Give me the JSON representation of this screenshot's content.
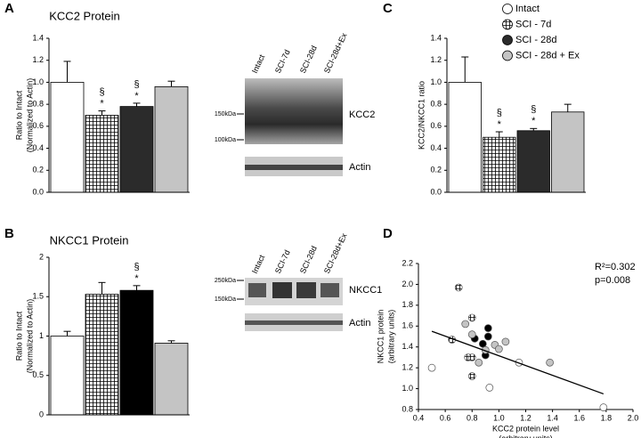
{
  "panel_labels": [
    "A",
    "B",
    "C",
    "D"
  ],
  "chart_data": [
    {
      "type": "bar",
      "title": "KCC2 Protein",
      "y_label": [
        "Ratio to Intact",
        "(Normalized to Actin)"
      ],
      "categories": [
        null,
        null,
        null,
        null
      ],
      "values": [
        1.0,
        0.7,
        0.78,
        0.96
      ],
      "errors": [
        0.19,
        0.04,
        0.03,
        0.05
      ],
      "fills": [
        "#ffffff",
        "hatch",
        "#2b2b2b",
        "#c4c4c4"
      ],
      "annotations": [
        {
          "index": 1,
          "lines": [
            "§",
            "*"
          ]
        },
        {
          "index": 2,
          "lines": [
            "§",
            "*"
          ]
        }
      ],
      "ylim": [
        0,
        1.4
      ],
      "yticks": [
        {
          "value": 0,
          "label": "0.0"
        },
        0.2,
        0.4,
        0.6,
        0.8,
        {
          "value": 1,
          "label": "1.0"
        },
        1.2,
        1.4
      ]
    },
    {
      "type": "bar",
      "title": "NKCC1 Protein",
      "y_label": [
        "Ratio to Intact",
        "(Normalized to Actin)"
      ],
      "categories": [
        null,
        null,
        null,
        null
      ],
      "values": [
        1.0,
        1.53,
        1.58,
        0.91
      ],
      "errors": [
        0.06,
        0.15,
        0.06,
        0.03
      ],
      "fills": [
        "#ffffff",
        "hatch",
        "#000000",
        "#c4c4c4"
      ],
      "annotations": [
        {
          "index": 2,
          "lines": [
            "§",
            "*"
          ]
        }
      ],
      "ylim": [
        0,
        2
      ],
      "yticks": [
        0,
        0.5,
        1,
        1.5,
        2
      ]
    },
    {
      "type": "bar",
      "y_label": [
        "KCC2/NKCC1 ratio"
      ],
      "categories": [
        "Intact",
        "SCI - 7d",
        "SCI - 28d",
        "SCI - 28d + Ex"
      ],
      "legend": true,
      "values": [
        1.0,
        0.5,
        0.56,
        0.73
      ],
      "errors": [
        0.23,
        0.05,
        0.02,
        0.07
      ],
      "fills": [
        "#ffffff",
        "hatch",
        "#2b2b2b",
        "#c4c4c4"
      ],
      "annotations": [
        {
          "index": 1,
          "lines": [
            "§",
            "*"
          ]
        },
        {
          "index": 2,
          "lines": [
            "§",
            "*"
          ]
        }
      ],
      "ylim": [
        0,
        1.4
      ],
      "yticks": [
        {
          "value": 0,
          "label": "0.0"
        },
        0.2,
        0.4,
        0.6,
        0.8,
        {
          "value": 1,
          "label": "1.0"
        },
        1.2,
        1.4
      ]
    },
    {
      "type": "scatter",
      "x_label": [
        "KCC2 protein level",
        "(arbitrary units)"
      ],
      "y_label": [
        "NKCC1 protein",
        "(arbitrary units)"
      ],
      "annotations": [
        "R²=0.302",
        "p=0.008"
      ],
      "series": [
        {
          "color": "#ffffff",
          "x": [
            0.5,
            0.93,
            1.15,
            1.78
          ],
          "y": [
            1.2,
            1.01,
            1.25,
            0.82
          ]
        },
        {
          "color": "hatch",
          "x": [
            0.7,
            0.65,
            0.8,
            0.77,
            0.8,
            0.8
          ],
          "y": [
            1.97,
            1.47,
            1.68,
            1.3,
            1.3,
            1.12
          ]
        },
        {
          "color": "#000000",
          "x": [
            0.82,
            0.88,
            0.92,
            0.92,
            0.9
          ],
          "y": [
            1.48,
            1.43,
            1.58,
            1.5,
            1.32
          ]
        },
        {
          "color": "#c4c4c4",
          "x": [
            0.75,
            0.8,
            0.97,
            1.0,
            1.05,
            0.85,
            1.38,
            0.9
          ],
          "y": [
            1.62,
            1.52,
            1.42,
            1.38,
            1.45,
            1.25,
            1.25,
            1.37
          ]
        }
      ],
      "trendline": {
        "x": [
          0.5,
          1.78
        ],
        "y": [
          1.55,
          0.95
        ]
      },
      "xlim": [
        0.4,
        2.0
      ],
      "xticks": [
        0.4,
        0.6,
        0.8,
        {
          "value": 1,
          "label": "1.0"
        },
        1.2,
        1.4,
        1.6,
        1.8,
        {
          "value": 2,
          "label": "2.0"
        }
      ],
      "ylim": [
        0.8,
        2.2
      ],
      "yticks": [
        0.8,
        {
          "value": 1,
          "label": "1.0"
        },
        1.2,
        1.4,
        1.6,
        1.8,
        {
          "value": 2,
          "label": "2.0"
        },
        2.2
      ]
    }
  ],
  "blots": [
    {
      "lanes": [
        "Intact",
        "SCI-7d",
        "SCI-28d",
        "SCI-28d+Ex"
      ],
      "markers": [
        "150kDa",
        "100kDa"
      ],
      "bands": [
        "KCC2",
        "Actin"
      ]
    },
    {
      "lanes": [
        "Intact",
        "SCI-7d",
        "SCI-28d",
        "SCI-28d+Ex"
      ],
      "markers": [
        "250kDa",
        "150kDa"
      ],
      "bands": [
        "NKCC1",
        "Actin"
      ]
    }
  ]
}
